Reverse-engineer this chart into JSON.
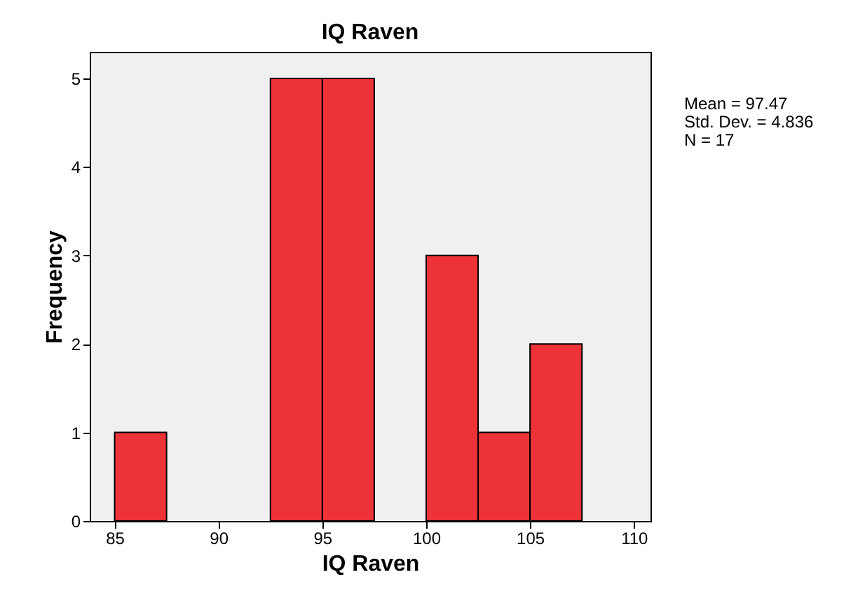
{
  "chart_data": {
    "type": "histogram",
    "title": "IQ Raven",
    "xlabel": "IQ Raven",
    "ylabel": "Frequency",
    "bins": [
      85,
      87.5,
      90,
      92.5,
      95,
      97.5,
      100,
      102.5,
      105,
      107.5
    ],
    "values": [
      1,
      0,
      0,
      5,
      5,
      0,
      3,
      1,
      2
    ],
    "color": "#ee3338",
    "xlim": [
      83.8,
      110.8
    ],
    "xticks": [
      85,
      90,
      95,
      100,
      105,
      110
    ],
    "ylim": [
      0,
      5.3
    ],
    "yticks": [
      0,
      1,
      2,
      3,
      4,
      5
    ],
    "grid": false,
    "legend": false,
    "annotations": [
      "Mean = 97.47",
      "Std. Dev. = 4.836",
      "N = 17"
    ]
  }
}
